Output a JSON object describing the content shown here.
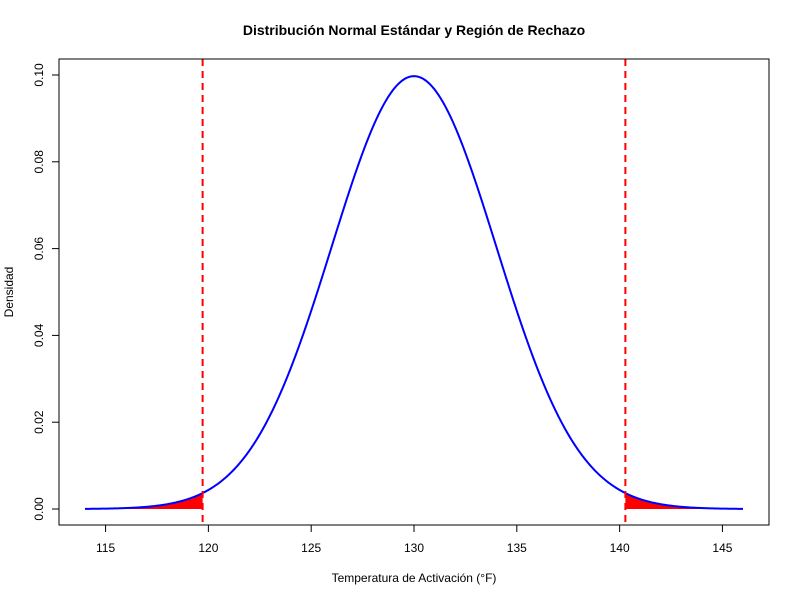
{
  "chart_data": {
    "type": "line",
    "title": "Distribución Normal Estándar y Región de Rechazo",
    "xlabel": "Temperatura de Activación (°F)",
    "ylabel": "Densidad",
    "xlim": [
      114,
      146
    ],
    "ylim": [
      0,
      0.1
    ],
    "x_ticks": [
      "115",
      "120",
      "125",
      "130",
      "135",
      "140",
      "145"
    ],
    "y_ticks": [
      "0.00",
      "0.02",
      "0.04",
      "0.06",
      "0.08",
      "0.10"
    ],
    "series": [
      {
        "color": "#0000ff",
        "distribution": "normal",
        "mean": 130,
        "sd": 4,
        "x_range": [
          114,
          146
        ],
        "peak_density": 0.0997
      }
    ],
    "critical_values": [
      119.72,
      140.28
    ],
    "rejection_color": "#ff0000",
    "critical_line_color": "#ff0000",
    "critical_line_style": "dashed",
    "grid": false,
    "legend": "none"
  }
}
